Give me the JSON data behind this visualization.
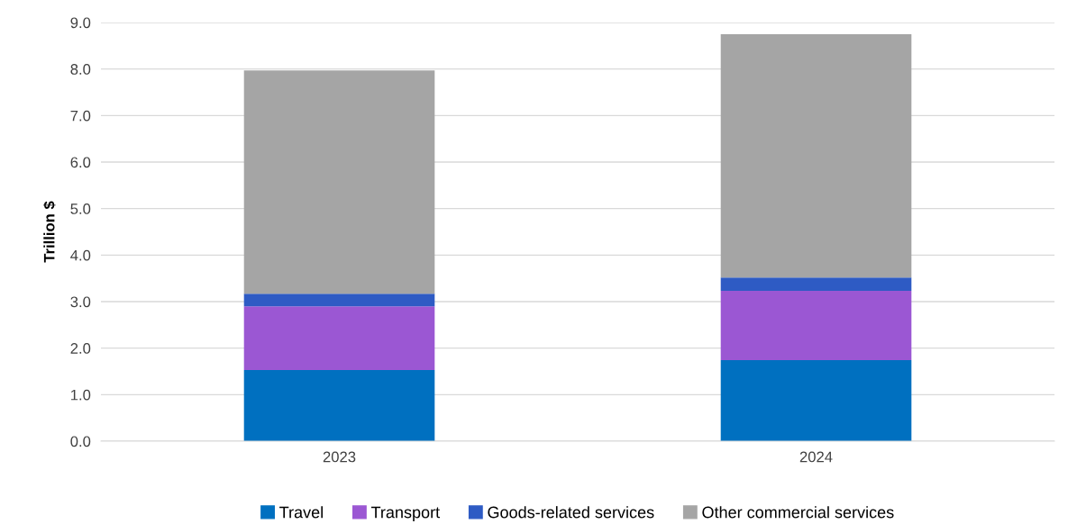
{
  "chart_data": {
    "type": "bar",
    "stacked": true,
    "ylabel": "Trillion $",
    "categories": [
      "2023",
      "2024"
    ],
    "series": [
      {
        "name": "Travel",
        "color": "#0070c0",
        "values": [
          1.53,
          1.74
        ]
      },
      {
        "name": "Transport",
        "color": "#9b57d3",
        "values": [
          1.37,
          1.49
        ]
      },
      {
        "name": "Goods-related services",
        "color": "#2e5bc4",
        "values": [
          0.27,
          0.29
        ]
      },
      {
        "name": "Other commercial services",
        "color": "#a5a5a5",
        "values": [
          4.8,
          5.23
        ]
      }
    ],
    "ylim": [
      0,
      9
    ],
    "yticks": [
      {
        "value": 0,
        "label": "0.0"
      },
      {
        "value": 1,
        "label": "1.0"
      },
      {
        "value": 2,
        "label": "2.0"
      },
      {
        "value": 3,
        "label": "3.0"
      },
      {
        "value": 4,
        "label": "4.0"
      },
      {
        "value": 5,
        "label": "5.0"
      },
      {
        "value": 6,
        "label": "6.0"
      },
      {
        "value": 7,
        "label": "7.0"
      },
      {
        "value": 8,
        "label": "8.0"
      },
      {
        "value": 9,
        "label": "9.0"
      }
    ],
    "grid": "y",
    "legend": "bottom"
  }
}
